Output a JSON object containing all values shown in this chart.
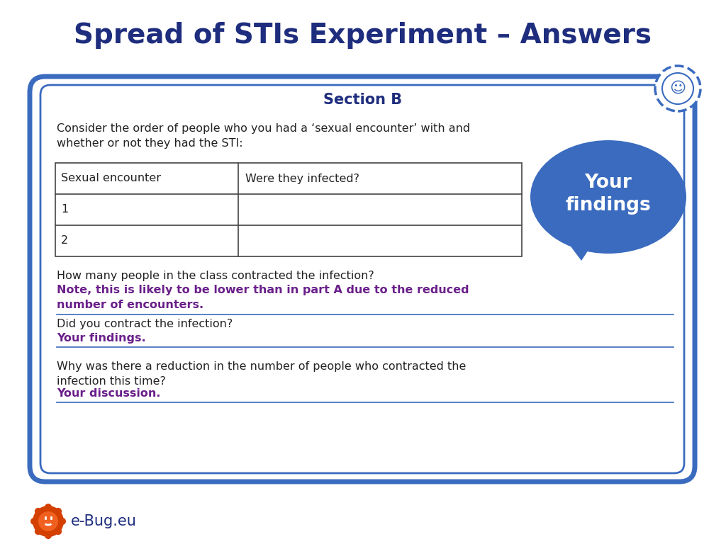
{
  "title": "Spread of STIs Experiment – Answers",
  "title_color": "#1e2d7d",
  "title_fontsize": 28,
  "section_title": "Section B",
  "section_title_color": "#1e2d7d",
  "body_text_color": "#222222",
  "dark_blue": "#1e2d7d",
  "medium_blue": "#3a6bbf",
  "bubble_blue": "#3a6bbf",
  "purple": "#6a1f8a",
  "outer_border_color": "#3a6bbf",
  "bg_color": "#ffffff",
  "consider_text": "Consider the order of people who you had a ‘sexual encounter’ with and\nwhether or not they had the STI:",
  "table_col1": "Sexual encounter",
  "table_col2": "Were they infected?",
  "table_rows": [
    "1",
    "2"
  ],
  "bubble_text": "Your\nfindings",
  "q1_label": "How many people in the class contracted the infection?",
  "q1_answer": "Note, this is likely to be lower than in part A due to the reduced\nnumber of encounters.",
  "q2_label": "Did you contract the infection?",
  "q2_answer": "Your findings.",
  "q3_label": "Why was there a reduction in the number of people who contracted the\ninfection this time?",
  "q3_answer": "Your discussion.",
  "ebug_text": "e-Bug.eu"
}
